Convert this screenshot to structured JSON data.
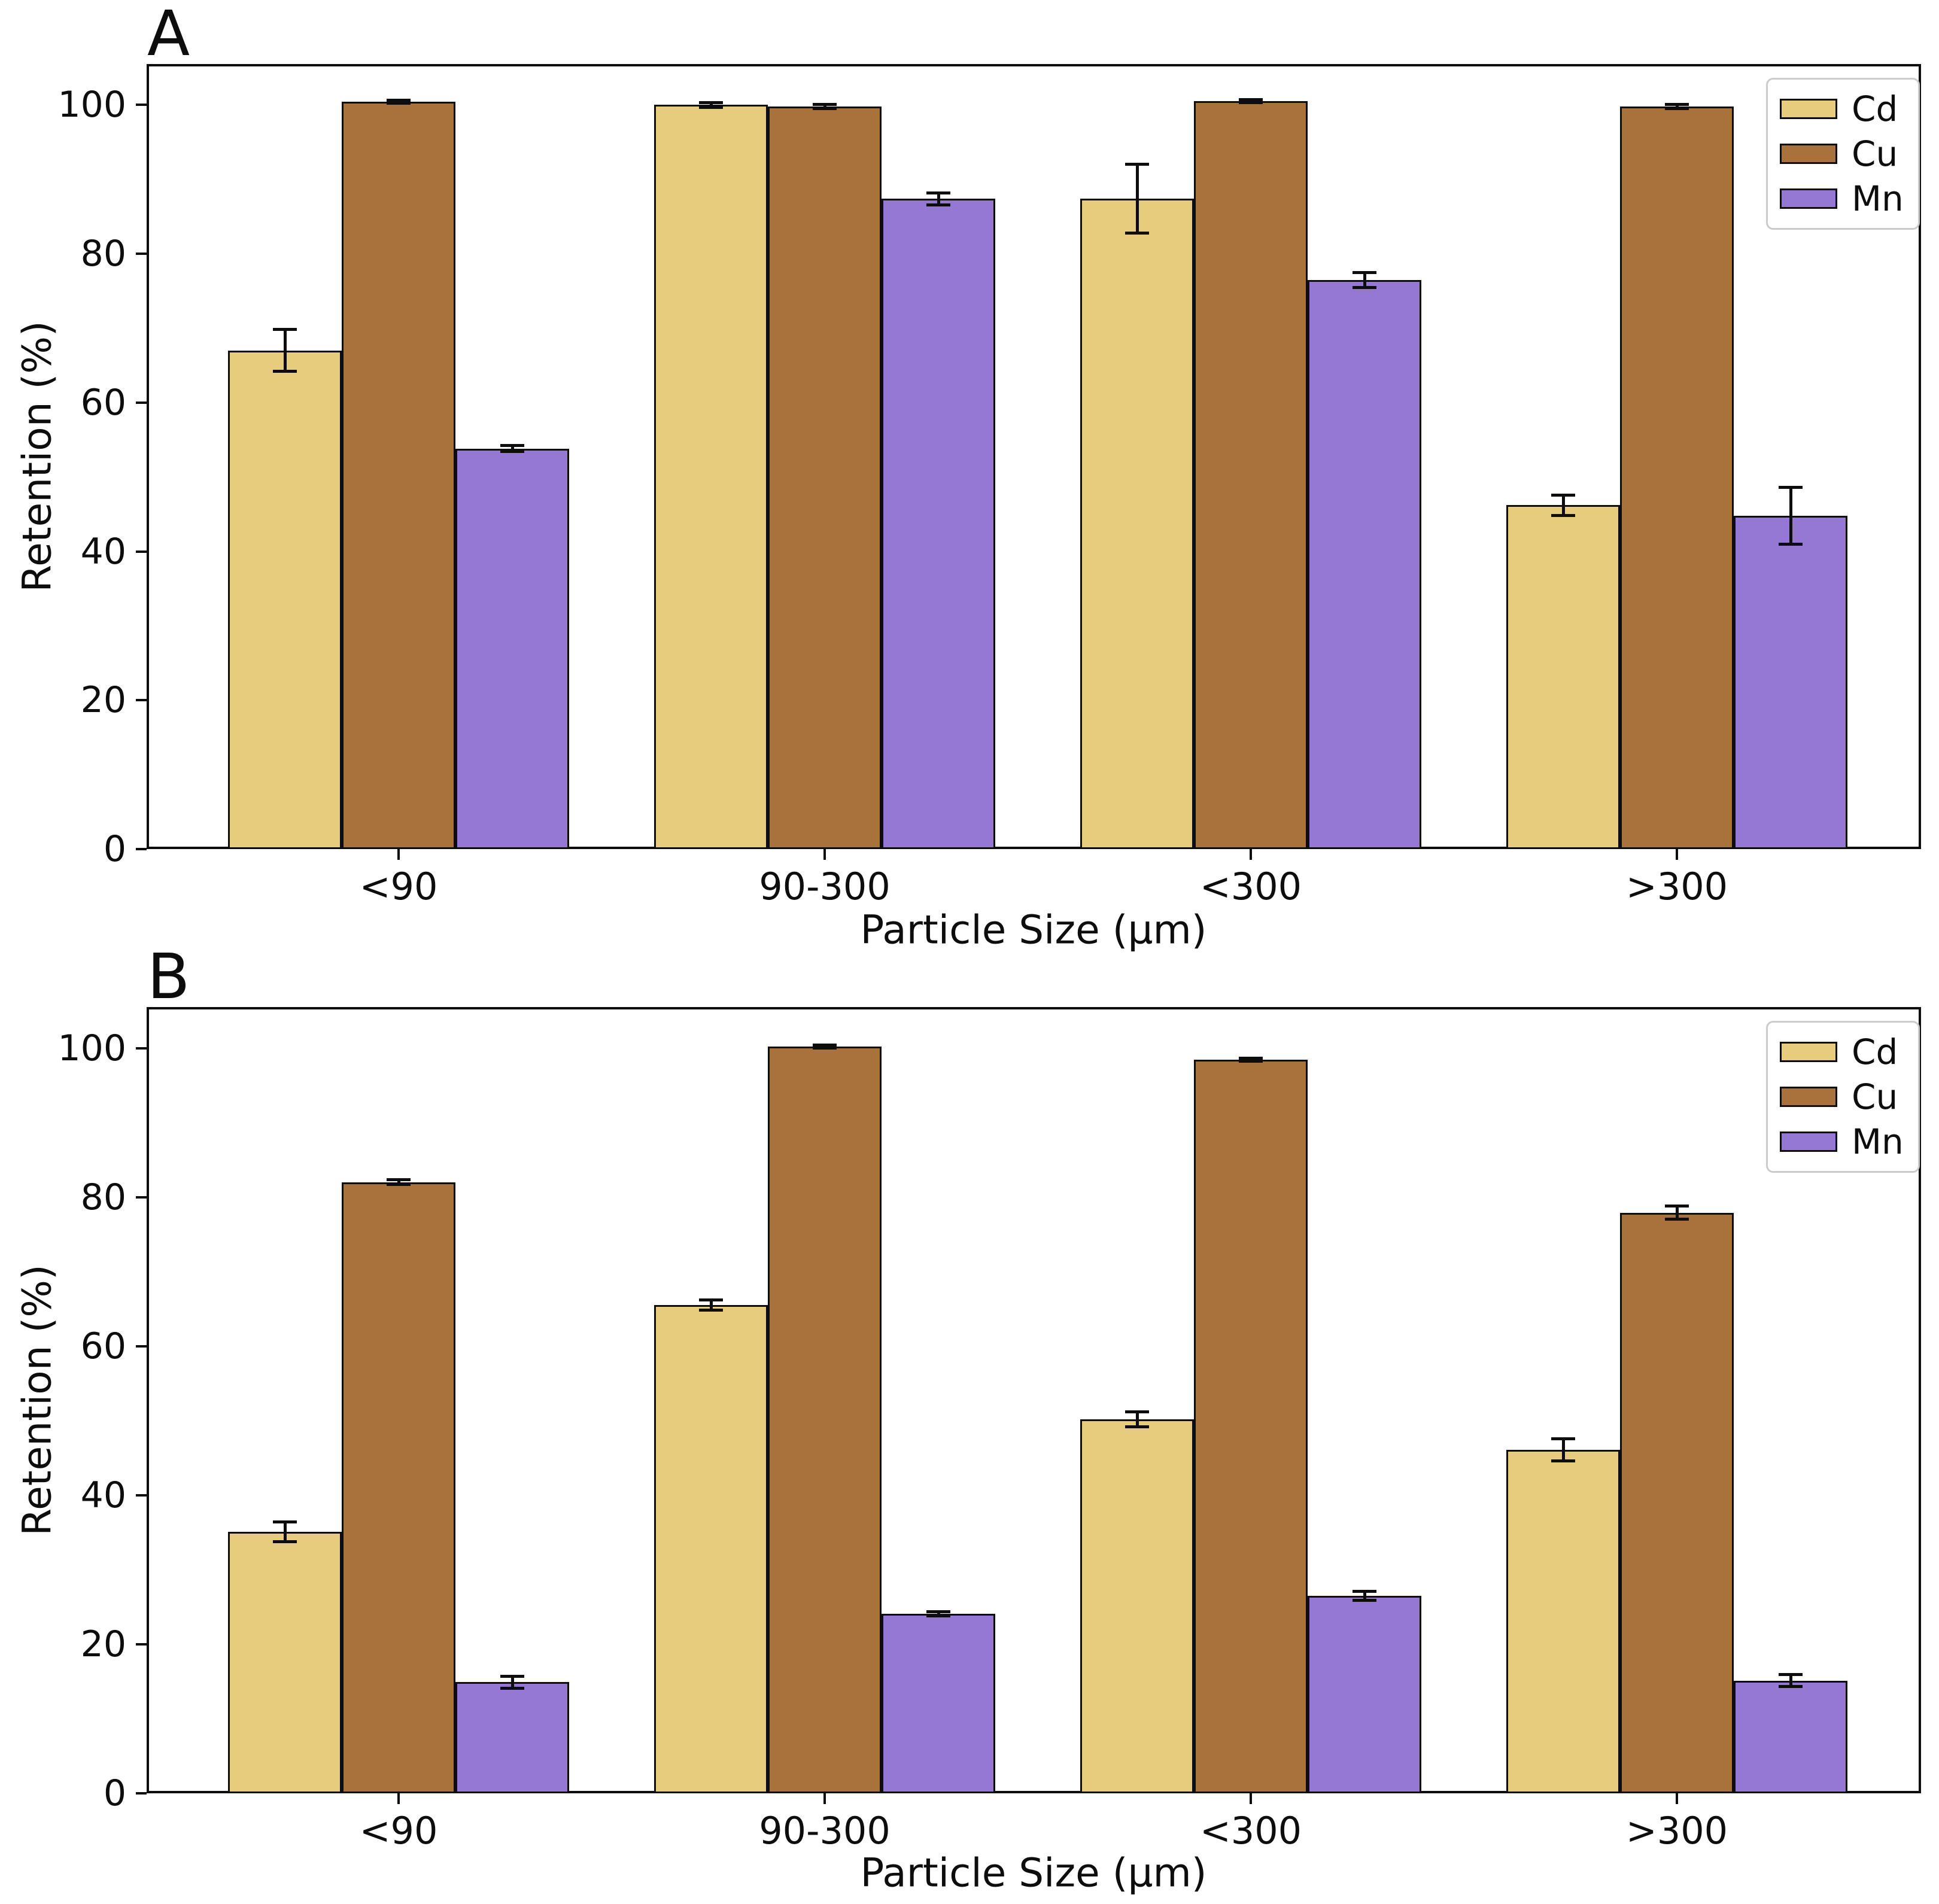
{
  "figure": {
    "panels": [
      "A",
      "B"
    ]
  },
  "chart_data": [
    {
      "type": "bar",
      "panel_label": "A",
      "title": "A",
      "xlabel": "Particle Size (μm)",
      "ylabel": "Retention (%)",
      "categories": [
        "<90",
        "90-300",
        "<300",
        ">300"
      ],
      "yticks": [
        0,
        20,
        40,
        60,
        80,
        100
      ],
      "ylim": [
        0,
        105.5
      ],
      "grid": false,
      "legend_position": "upper right",
      "legend_entries": [
        "Cd",
        "Cu",
        "Mn"
      ],
      "series": [
        {
          "name": "Cd",
          "color": "#e8cc7d",
          "values": [
            67.0,
            100.0,
            87.4,
            46.2
          ],
          "errors": [
            2.8,
            0.3,
            4.6,
            1.4
          ]
        },
        {
          "name": "Cu",
          "color": "#a9713c",
          "values": [
            100.4,
            99.8,
            100.5,
            99.8
          ],
          "errors": [
            0.2,
            0.3,
            0.2,
            0.3
          ]
        },
        {
          "name": "Mn",
          "color": "#9577d4",
          "values": [
            53.8,
            87.4,
            76.5,
            44.8
          ],
          "errors": [
            0.4,
            0.8,
            1.0,
            3.8
          ]
        }
      ]
    },
    {
      "type": "bar",
      "panel_label": "B",
      "title": "B",
      "xlabel": "Particle Size (μm)",
      "ylabel": "Retention (%)",
      "categories": [
        "<90",
        "90-300",
        "<300",
        ">300"
      ],
      "yticks": [
        0,
        20,
        40,
        60,
        80,
        100
      ],
      "ylim": [
        0,
        105.5
      ],
      "grid": false,
      "legend_position": "upper right",
      "legend_entries": [
        "Cd",
        "Cu",
        "Mn"
      ],
      "series": [
        {
          "name": "Cd",
          "color": "#e8cc7d",
          "values": [
            35.1,
            65.5,
            50.2,
            46.1
          ],
          "errors": [
            1.3,
            0.7,
            1.0,
            1.5
          ]
        },
        {
          "name": "Cu",
          "color": "#a9713c",
          "values": [
            82.0,
            100.2,
            98.4,
            77.9
          ],
          "errors": [
            0.3,
            0.2,
            0.2,
            0.9
          ]
        },
        {
          "name": "Mn",
          "color": "#9577d4",
          "values": [
            14.9,
            24.1,
            26.5,
            15.1
          ],
          "errors": [
            0.8,
            0.3,
            0.6,
            0.8
          ]
        }
      ]
    }
  ]
}
